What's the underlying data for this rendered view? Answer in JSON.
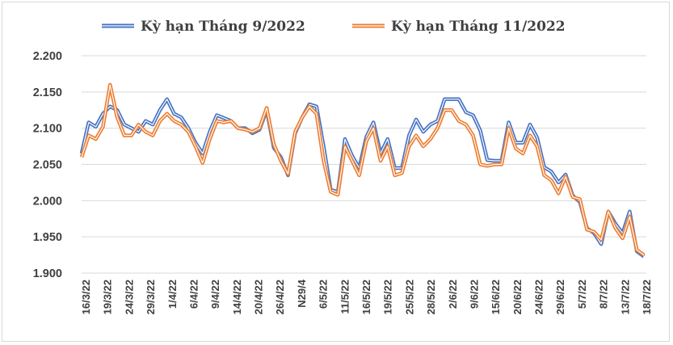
{
  "chart_data": {
    "type": "line",
    "title": "",
    "xlabel": "",
    "ylabel": "",
    "ylim": [
      1.9,
      2.2
    ],
    "yticks": [
      "2.200",
      "2.150",
      "2.100",
      "2.050",
      "2.000",
      "1.950",
      "1.900"
    ],
    "ytick_values": [
      2.2,
      2.15,
      2.1,
      2.05,
      2.0,
      1.95,
      1.9
    ],
    "grid": "horizontal",
    "legend": "top-center",
    "x_tick_labels": [
      "16/3/22",
      "19/3/22",
      "24/3/22",
      "29/3/22",
      "1/4/22",
      "6/4/22",
      "9/4/22",
      "14/4/22",
      "20/4/22",
      "26/4/22",
      "N29/4",
      "6/5/22",
      "11/5/22",
      "16/5/22",
      "19/5/22",
      "25/5/22",
      "28/5/22",
      "2/6/22",
      "9/6/22",
      "15/6/22",
      "20/6/22",
      "24/6/22",
      "29/6/22",
      "5/7/22",
      "8/7/22",
      "13/7/22",
      "18/7/22"
    ],
    "series": [
      {
        "name": "Kỳ hạn Tháng 9/2022",
        "color": "#4472c4",
        "values": [
          2.065,
          2.108,
          2.102,
          2.12,
          2.13,
          2.125,
          2.105,
          2.1,
          2.095,
          2.11,
          2.105,
          2.125,
          2.14,
          2.12,
          2.115,
          2.1,
          2.08,
          2.065,
          2.095,
          2.118,
          2.114,
          2.11,
          2.1,
          2.1,
          2.093,
          2.098,
          2.125,
          2.073,
          2.06,
          2.035,
          2.093,
          2.115,
          2.133,
          2.13,
          2.075,
          2.015,
          2.012,
          2.085,
          2.062,
          2.045,
          2.088,
          2.108,
          2.065,
          2.085,
          2.045,
          2.045,
          2.09,
          2.112,
          2.095,
          2.105,
          2.11,
          2.14,
          2.14,
          2.14,
          2.122,
          2.118,
          2.097,
          2.056,
          2.055,
          2.055,
          2.108,
          2.08,
          2.08,
          2.105,
          2.087,
          2.046,
          2.04,
          2.025,
          2.036,
          2.007,
          1.998,
          1.962,
          1.955,
          1.94,
          1.985,
          1.968,
          1.955,
          1.985,
          1.93,
          1.923
        ]
      },
      {
        "name": "Kỳ hạn Tháng 11/2022",
        "color": "#ed7d31",
        "values": [
          2.06,
          2.09,
          2.085,
          2.102,
          2.16,
          2.115,
          2.09,
          2.09,
          2.105,
          2.095,
          2.09,
          2.11,
          2.12,
          2.11,
          2.105,
          2.095,
          2.075,
          2.052,
          2.085,
          2.11,
          2.108,
          2.11,
          2.1,
          2.098,
          2.095,
          2.1,
          2.128,
          2.078,
          2.055,
          2.037,
          2.095,
          2.115,
          2.13,
          2.12,
          2.055,
          2.012,
          2.008,
          2.075,
          2.055,
          2.035,
          2.082,
          2.1,
          2.055,
          2.075,
          2.035,
          2.038,
          2.075,
          2.09,
          2.075,
          2.085,
          2.1,
          2.125,
          2.125,
          2.11,
          2.105,
          2.09,
          2.05,
          2.048,
          2.05,
          2.05,
          2.1,
          2.072,
          2.065,
          2.09,
          2.075,
          2.035,
          2.028,
          2.01,
          2.033,
          2.005,
          2.002,
          1.96,
          1.957,
          1.946,
          1.985,
          1.962,
          1.948,
          1.978,
          1.932,
          1.925
        ]
      }
    ]
  }
}
